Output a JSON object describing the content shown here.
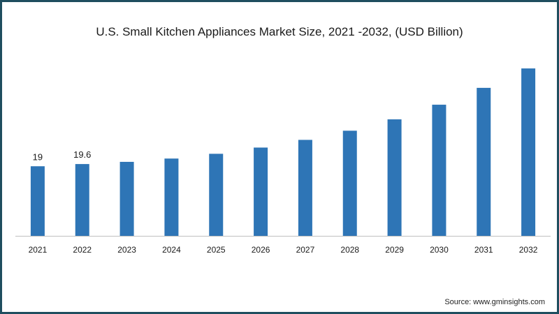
{
  "chart_data": {
    "type": "bar",
    "title": "U.S. Small Kitchen Appliances Market Size, 2021 -2032, (USD Billion)",
    "xlabel": "",
    "ylabel": "",
    "categories": [
      "2021",
      "2022",
      "2023",
      "2024",
      "2025",
      "2026",
      "2027",
      "2028",
      "2029",
      "2030",
      "2031",
      "2032"
    ],
    "values": [
      19,
      19.6,
      20.2,
      21.1,
      22.4,
      24.1,
      26.2,
      28.7,
      31.8,
      35.8,
      40.4,
      45.7
    ],
    "data_labels": [
      "19",
      "19.6",
      "",
      "",
      "",
      "",
      "",
      "",
      "",
      "",
      "",
      ""
    ],
    "ylim": [
      0,
      48
    ],
    "grid": false,
    "legend": "none",
    "bar_color": "#2e75b6",
    "axis_color": "#bfbfbf"
  },
  "source": "Source: www.gminsights.com",
  "frame_color": "#1f4e5f"
}
